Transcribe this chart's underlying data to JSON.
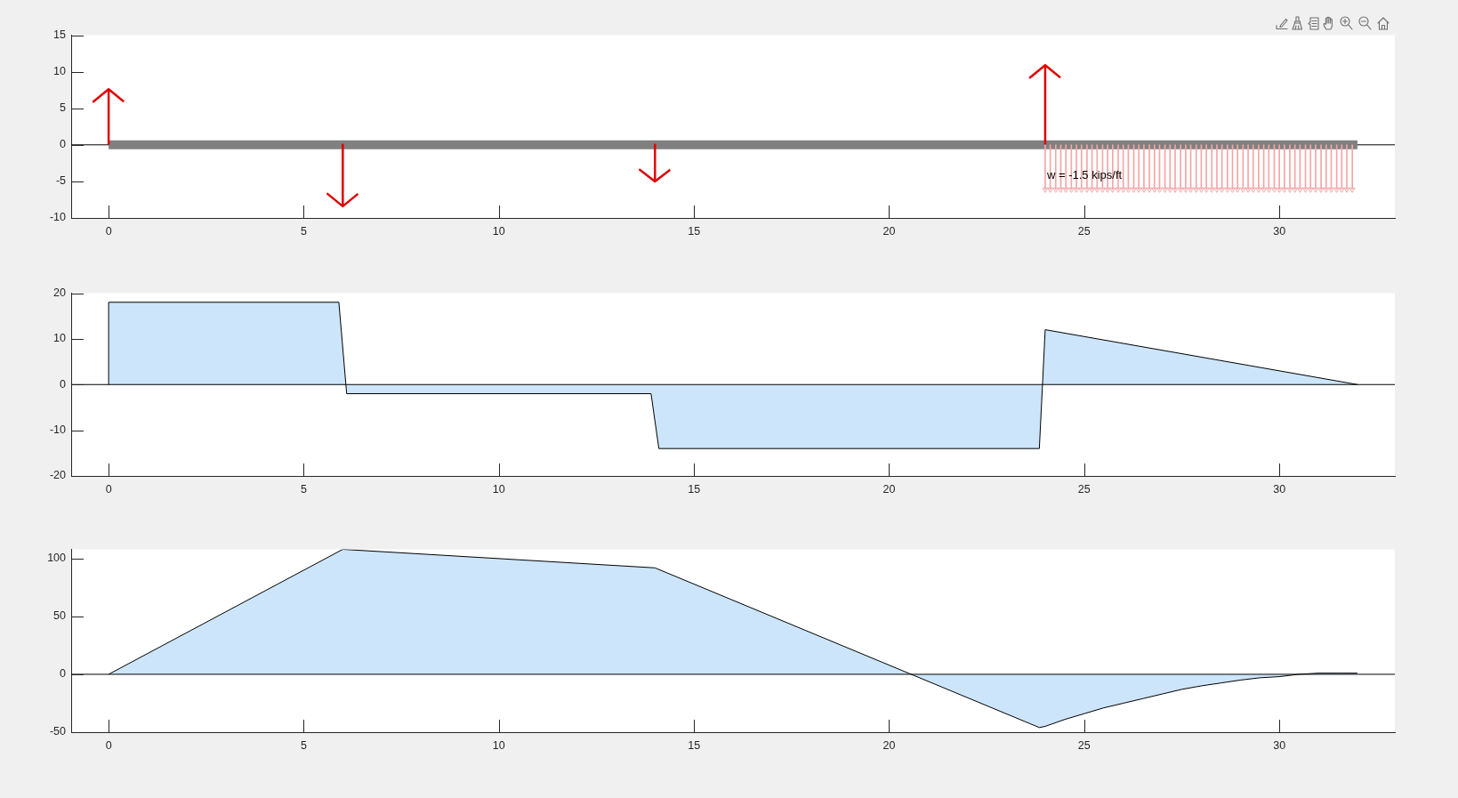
{
  "chart_data": [
    {
      "type": "line",
      "xlim": [
        -0.96,
        32.96
      ],
      "xticks": [
        0,
        5,
        10,
        15,
        20,
        25,
        30
      ],
      "ylim": [
        -10,
        15
      ],
      "yticks": [
        -10,
        -5,
        0,
        5,
        10,
        15
      ],
      "ref_lines": [
        {
          "axis": "y",
          "value": 0,
          "color": "#000000"
        }
      ],
      "annotations": [
        "w = -1.5 kips/ft"
      ],
      "series": [
        {
          "color": "#808080",
          "x": [
            0,
            32
          ],
          "values": [
            0,
            0
          ]
        },
        {
          "color": "#e00000",
          "x": [
            0,
            0,
            -0.39,
            0,
            0.39
          ],
          "values": [
            0,
            7.6,
            5.9,
            7.6,
            5.9
          ]
        },
        {
          "color": "#e00000",
          "x": [
            6,
            6,
            5.61,
            6,
            6.39
          ],
          "values": [
            0,
            -8.4,
            -6.7,
            -8.4,
            -6.7
          ]
        },
        {
          "color": "#e00000",
          "x": [
            14,
            14,
            13.61,
            14,
            14.39
          ],
          "values": [
            0,
            -5,
            -3.4,
            -5,
            -3.4
          ]
        },
        {
          "color": "#e00000",
          "x": [
            24,
            24,
            23.61,
            24,
            24.39
          ],
          "values": [
            0,
            10.9,
            9.2,
            10.9,
            9.2
          ]
        },
        {
          "type": "lollipop",
          "marker": "triangle",
          "color": "#f4a6a6",
          "x": [
            24,
            24.13,
            24.27,
            24.4,
            24.53,
            24.67,
            24.8,
            24.93,
            25.07,
            25.2,
            25.33,
            25.47,
            25.6,
            25.73,
            25.87,
            26,
            26.13,
            26.27,
            26.4,
            26.53,
            26.67,
            26.8,
            26.93,
            27.07,
            27.2,
            27.33,
            27.47,
            27.6,
            27.73,
            27.87,
            28,
            28.13,
            28.27,
            28.4,
            28.53,
            28.67,
            28.8,
            28.93,
            29.07,
            29.2,
            29.33,
            29.47,
            29.6,
            29.73,
            29.87,
            30,
            30.13,
            30.27,
            30.4,
            30.53,
            30.67,
            30.8,
            30.93,
            31.07,
            31.2,
            31.33,
            31.47,
            31.6,
            31.73,
            31.87
          ],
          "values": [
            -6.1,
            -6.1,
            -6.1,
            -6.1,
            -6.1,
            -6.1,
            -6.1,
            -6.1,
            -6.1,
            -6.1,
            -6.1,
            -6.1,
            -6.1,
            -6.1,
            -6.1,
            -6.1,
            -6.1,
            -6.1,
            -6.1,
            -6.1,
            -6.1,
            -6.1,
            -6.1,
            -6.1,
            -6.1,
            -6.1,
            -6.1,
            -6.1,
            -6.1,
            -6.1,
            -6.1,
            -6.1,
            -6.1,
            -6.1,
            -6.1,
            -6.1,
            -6.1,
            -6.1,
            -6.1,
            -6.1,
            -6.1,
            -6.1,
            -6.1,
            -6.1,
            -6.1,
            -6.1,
            -6.1,
            -6.1,
            -6.1,
            -6.1,
            -6.1,
            -6.1,
            -6.1,
            -6.1,
            -6.1,
            -6.1,
            -6.1,
            -6.1,
            -6.1,
            -6.1
          ]
        }
      ]
    },
    {
      "type": "area",
      "color": "#cce5fb",
      "xlim": [
        -0.96,
        32.96
      ],
      "xticks": [
        0,
        5,
        10,
        15,
        20,
        25,
        30
      ],
      "ylim": [
        -20,
        20
      ],
      "yticks": [
        -20,
        -10,
        0,
        10,
        20
      ],
      "ref_lines": [
        {
          "axis": "y",
          "value": 0,
          "color": "#000000"
        }
      ],
      "x": [
        0,
        0,
        5.9,
        6.1,
        13.9,
        14.1,
        23.85,
        24,
        32
      ],
      "values": [
        0,
        18,
        18,
        -2,
        -2,
        -14,
        -14,
        12,
        0
      ]
    },
    {
      "type": "area",
      "color": "#cce5fb",
      "xlim": [
        -0.96,
        32.96
      ],
      "xticks": [
        0,
        5,
        10,
        15,
        20,
        25,
        30
      ],
      "ylim": [
        -50,
        108
      ],
      "yticks": [
        -50,
        0,
        50,
        100
      ],
      "ref_lines": [
        {
          "axis": "y",
          "value": 0,
          "color": "#000000"
        }
      ],
      "x": [
        0,
        6,
        14,
        23.85,
        24,
        24.5,
        25,
        25.5,
        26,
        26.5,
        27,
        27.5,
        28,
        28.5,
        29,
        29.5,
        30,
        30.5,
        31,
        31.5,
        32
      ],
      "values": [
        0,
        108,
        92,
        -46,
        -45,
        -39,
        -34,
        -29,
        -25,
        -21,
        -17,
        -13,
        -10,
        -7.5,
        -5,
        -3,
        -2,
        0,
        1,
        1,
        1
      ]
    }
  ]
}
